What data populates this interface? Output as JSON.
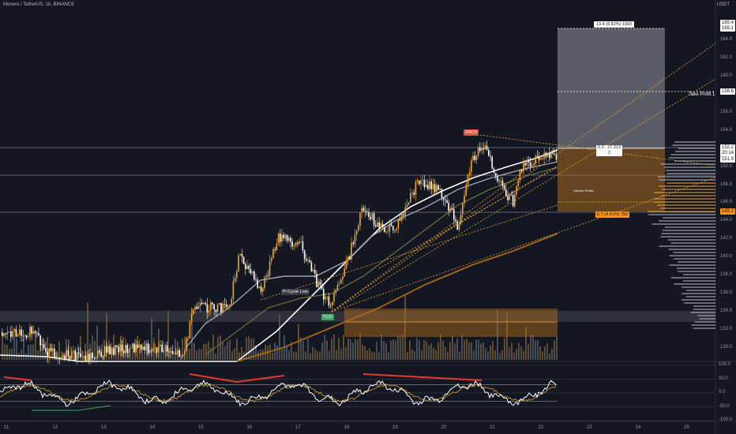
{
  "header": {
    "title": "Monero / TetherUS, 1h, BINANCE"
  },
  "quote_currency": "USDT",
  "colors": {
    "bg": "#131722",
    "candle": "#f0a531",
    "ma_white": "#ffffff",
    "ma_gray": "#9ea2ac",
    "ma_olive": "#6b6a36",
    "ma_orange": "#a5671c",
    "zone_orange": "#b8721d",
    "box_gray": "#5d606b",
    "ribbon": "#e53935",
    "marker_red": "#e04f3b",
    "marker_green": "#3ca55c",
    "axis_tag_orange": "#f7931a"
  },
  "price_axis": {
    "ticks": [
      "164.0",
      "162.0",
      "160.0",
      "158.0",
      "156.0",
      "154.0",
      "150.0",
      "148.0",
      "146.0",
      "144.0",
      "142.0",
      "140.0",
      "138.0",
      "136.0",
      "134.0",
      "132.0",
      "130.0"
    ]
  },
  "price_labels": [
    {
      "text": "165.4",
      "style": "white"
    },
    {
      "text": "165.1",
      "style": "white"
    },
    {
      "text": "158.6",
      "style": "white"
    },
    {
      "text": "152.2",
      "style": "dark"
    },
    {
      "text": "20:14",
      "style": "dark"
    },
    {
      "text": "151.9",
      "style": "dark"
    },
    {
      "text": "145.2",
      "style": "orange"
    }
  ],
  "time_axis": {
    "ticks": [
      "11",
      "12",
      "13",
      "14",
      "15",
      "16",
      "17",
      "18",
      "19",
      "20",
      "21",
      "22",
      "23",
      "24",
      "25"
    ]
  },
  "oscillator_axis": {
    "ticks": [
      "100.0",
      "50.0",
      "0.0",
      "-50.0",
      "-100.0"
    ]
  },
  "annotations": {
    "target_box": "13.4 (8.82%) 1500",
    "take_profit": "Take Profit 1",
    "risk_box": "6.7 (4.41%) 750",
    "ratio": "0.3 : 27.313",
    "ratio2": "2",
    "abcd": "ABCD",
    "pi_cycle": "Pi Cycle Low",
    "green_marker": "TCG",
    "volume_profile": "Volume Profile"
  }
}
